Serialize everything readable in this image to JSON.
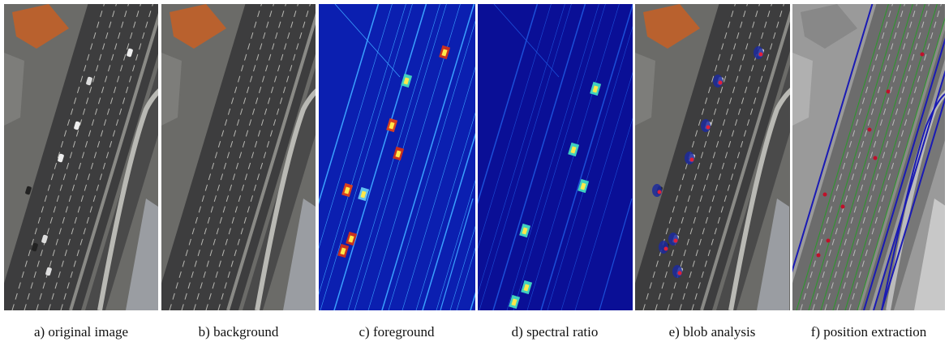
{
  "panels": [
    {
      "caption": "a) original image"
    },
    {
      "caption": "b) background"
    },
    {
      "caption": "c) foreground"
    },
    {
      "caption": "d) spectral ratio"
    },
    {
      "caption": "e) blob analysis"
    },
    {
      "caption": "f) position extraction"
    }
  ]
}
